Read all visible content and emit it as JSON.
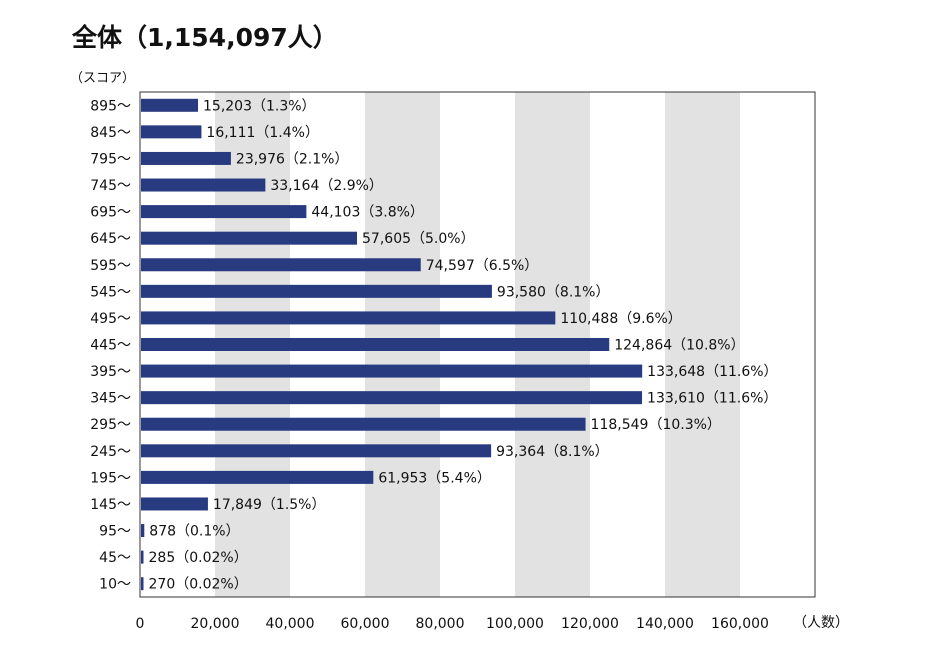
{
  "title": "全体（1,154,097人）",
  "chart_data": {
    "type": "bar",
    "orientation": "horizontal",
    "title": "全体（1,154,097人）",
    "ylabel": "（スコア）",
    "xlabel": "（人数）",
    "xlim": [
      0,
      180000
    ],
    "xticks": [
      0,
      20000,
      40000,
      60000,
      80000,
      100000,
      120000,
      140000,
      160000
    ],
    "xtick_labels": [
      "0",
      "20,000",
      "40,000",
      "60,000",
      "80,000",
      "100,000",
      "120,000",
      "140,000",
      "160,000"
    ],
    "grid": "alternating vertical bands",
    "band_color": "#e2e2e2",
    "bar_color": "#283a80",
    "categories": [
      "895〜",
      "845〜",
      "795〜",
      "745〜",
      "695〜",
      "645〜",
      "595〜",
      "545〜",
      "495〜",
      "445〜",
      "395〜",
      "345〜",
      "295〜",
      "245〜",
      "195〜",
      "145〜",
      "95〜",
      "45〜",
      "10〜"
    ],
    "values": [
      15203,
      16111,
      23976,
      33164,
      44103,
      57605,
      74597,
      93580,
      110488,
      124864,
      133648,
      133610,
      118549,
      93364,
      61953,
      17849,
      878,
      285,
      270
    ],
    "data_labels": [
      "15,203（1.3%）",
      "16,111（1.4%）",
      "23,976（2.1%）",
      "33,164（2.9%）",
      "44,103（3.8%）",
      "57,605（5.0%）",
      "74,597（6.5%）",
      "93,580（8.1%）",
      "110,488（9.6%）",
      "124,864（10.8%）",
      "133,648（11.6%）",
      "133,610（11.6%）",
      "118,549（10.3%）",
      "93,364（8.1%）",
      "61,953（5.4%）",
      "17,849（1.5%）",
      "878（0.1%）",
      "285（0.02%）",
      "270（0.02%）"
    ]
  }
}
